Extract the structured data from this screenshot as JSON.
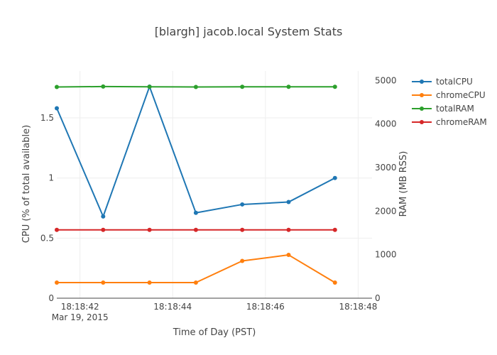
{
  "chart_data": {
    "type": "line",
    "title": "[blargh] jacob.local System Stats",
    "xlabel": "Time of Day (PST)",
    "ylabel_left": "CPU (% of total available)",
    "ylabel_right": "RAM (MB RSS)",
    "x_ticks": [
      {
        "value": 42,
        "label": "18:18:42",
        "sublabel": "Mar 19, 2015"
      },
      {
        "value": 44,
        "label": "18:18:44",
        "sublabel": ""
      },
      {
        "value": 46,
        "label": "18:18:46",
        "sublabel": ""
      },
      {
        "value": 48,
        "label": "18:18:48",
        "sublabel": ""
      }
    ],
    "y_ticks_left": [
      {
        "value": 0,
        "label": "0"
      },
      {
        "value": 0.5,
        "label": "0.5"
      },
      {
        "value": 1,
        "label": "1"
      },
      {
        "value": 1.5,
        "label": "1.5"
      }
    ],
    "y_ticks_right": [
      {
        "value": 0,
        "label": "0"
      },
      {
        "value": 1000,
        "label": "1000"
      },
      {
        "value": 2000,
        "label": "2000"
      },
      {
        "value": 3000,
        "label": "3000"
      },
      {
        "value": 4000,
        "label": "4000"
      },
      {
        "value": 5000,
        "label": "5000"
      }
    ],
    "x_range": [
      41.5,
      48.3
    ],
    "ylim_left": [
      0,
      1.89
    ],
    "ylim_right": [
      0,
      5217
    ],
    "grid": true,
    "legend_position": "top-right",
    "x": [
      41.5,
      42.5,
      43.5,
      44.5,
      45.5,
      46.5,
      47.5
    ],
    "series": [
      {
        "name": "totalCPU",
        "axis": "left",
        "color": "#1f77b4",
        "values": [
          1.58,
          0.68,
          1.76,
          0.71,
          0.78,
          0.8,
          1.0
        ]
      },
      {
        "name": "chromeCPU",
        "axis": "left",
        "color": "#ff7f0e",
        "values": [
          0.13,
          0.13,
          0.13,
          0.13,
          0.31,
          0.36,
          0.13
        ]
      },
      {
        "name": "totalRAM",
        "axis": "right",
        "color": "#2ca02c",
        "values": [
          4850,
          4860,
          4855,
          4850,
          4855,
          4855,
          4855
        ]
      },
      {
        "name": "chromeRAM",
        "axis": "right",
        "color": "#d62728",
        "values": [
          1570,
          1570,
          1570,
          1570,
          1570,
          1570,
          1570
        ]
      }
    ]
  }
}
